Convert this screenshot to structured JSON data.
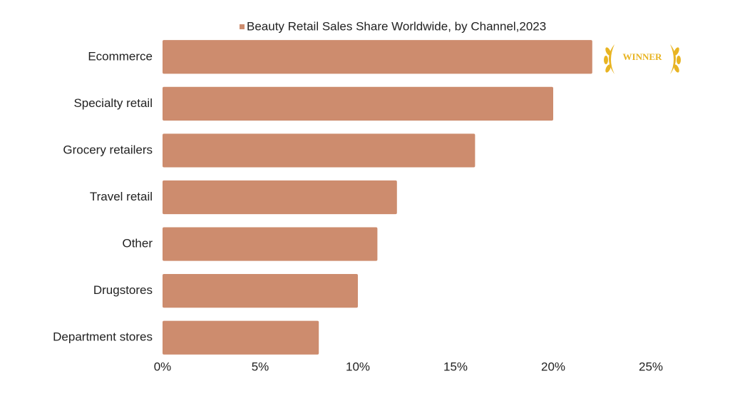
{
  "chart_data": {
    "type": "bar",
    "orientation": "horizontal",
    "categories": [
      "Ecommerce",
      "Specialty retail",
      "Grocery retailers",
      "Travel retail",
      "Other",
      "Drugstores",
      "Department stores"
    ],
    "series": [
      {
        "name": "Beauty Retail Sales Share Worldwide, by Channel,2023",
        "color": "#cd8c6e",
        "values": [
          22,
          20,
          16,
          12,
          11,
          10,
          8
        ]
      }
    ],
    "xlim": [
      0,
      25
    ],
    "xticks": [
      {
        "value": 0,
        "label": "0%"
      },
      {
        "value": 5,
        "label": "5%"
      },
      {
        "value": 10,
        "label": "10%"
      },
      {
        "value": 15,
        "label": "15%"
      },
      {
        "value": 20,
        "label": "20%"
      },
      {
        "value": 25,
        "label": "25%"
      }
    ],
    "grid": false,
    "legend": "top",
    "badge": "WINNER"
  }
}
